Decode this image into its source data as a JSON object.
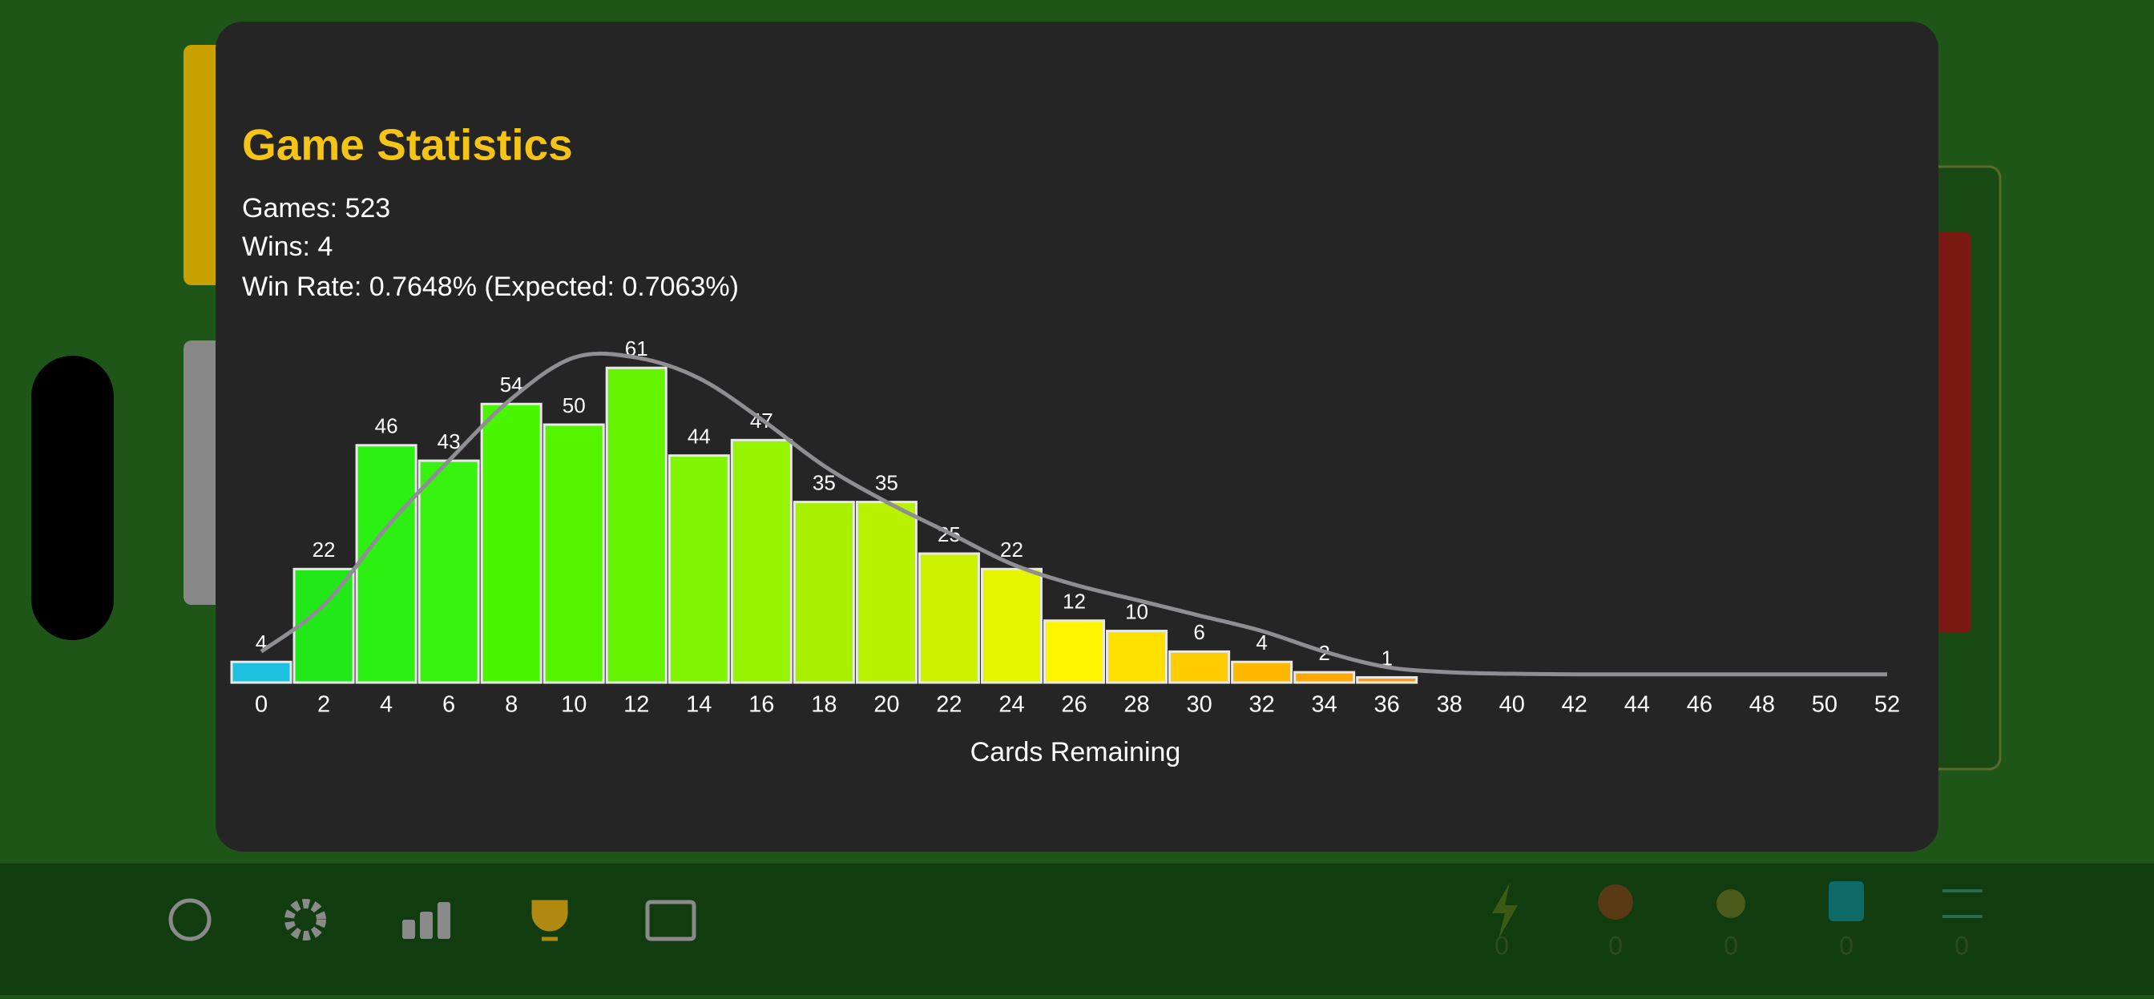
{
  "header": {
    "title": "Game Statistics",
    "lines": [
      "Games: 523",
      "Wins: 4",
      "Win Rate: 0.7648% (Expected: 0.7063%)"
    ]
  },
  "chart_data": {
    "type": "histogram",
    "bins": [
      -1,
      1,
      3,
      5,
      7,
      9,
      11,
      13,
      15,
      17,
      19,
      21,
      23,
      25,
      27,
      29,
      31,
      33,
      35,
      37
    ],
    "values": [
      4,
      22,
      46,
      43,
      54,
      50,
      61,
      44,
      47,
      35,
      35,
      25,
      22,
      12,
      10,
      6,
      4,
      2,
      1
    ],
    "colors": [
      "#1ec0e0",
      "#22e81a",
      "#2cf012",
      "#38f210",
      "#4af500",
      "#55f500",
      "#66f300",
      "#7ff500",
      "#95f500",
      "#a8f000",
      "#b8f200",
      "#cdf200",
      "#e5f500",
      "#fff500",
      "#ffe000",
      "#ffcc00",
      "#ffb800",
      "#ffa800",
      "#ff9a00"
    ],
    "xlim": [
      -1,
      53
    ],
    "xticks": [
      0,
      2,
      4,
      6,
      8,
      10,
      12,
      14,
      16,
      18,
      20,
      22,
      24,
      26,
      28,
      30,
      32,
      34,
      36,
      38,
      40,
      42,
      44,
      46,
      48,
      50,
      52
    ],
    "ylim": [
      0,
      66
    ],
    "xlabel": "Cards Remaining",
    "line": {
      "x": [
        0,
        2,
        4,
        6,
        8,
        10,
        12,
        14,
        16,
        18,
        20,
        22,
        24,
        26,
        28,
        30,
        32,
        34,
        36,
        38,
        40,
        42,
        44,
        46,
        48,
        50,
        52
      ],
      "values": [
        6,
        15,
        30,
        43,
        55,
        63,
        63,
        59,
        51,
        42,
        35,
        29,
        23,
        19,
        16,
        13,
        10,
        6,
        3,
        2,
        1.7,
        1.6,
        1.6,
        1.6,
        1.6,
        1.6,
        1.6
      ],
      "color": "#8e8e93"
    }
  },
  "toolbar": {
    "counters": [
      "0",
      "0",
      "0",
      "0",
      "0"
    ]
  }
}
